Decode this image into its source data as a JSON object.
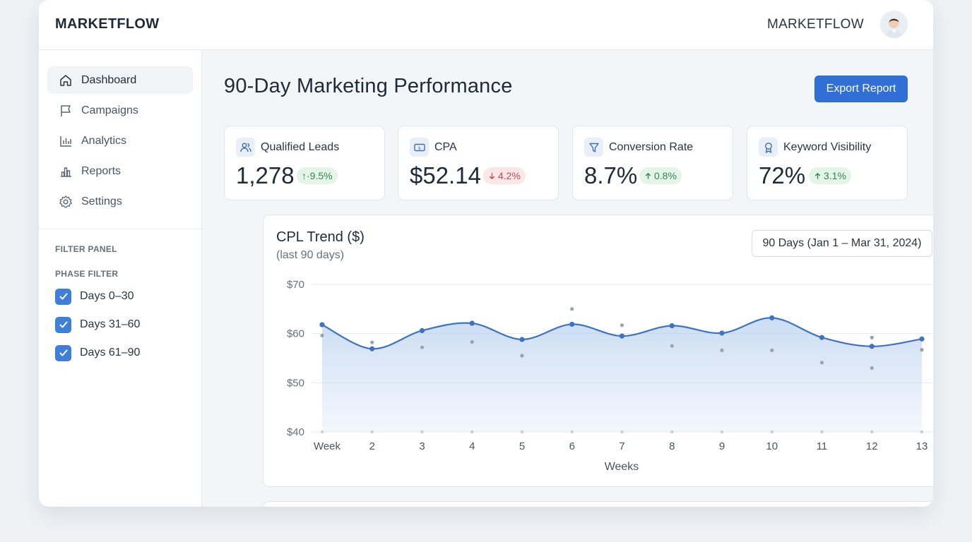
{
  "header": {
    "brand": "MARKETFLOW",
    "brand_right": "MARKETFLOW"
  },
  "sidebar": {
    "items": [
      {
        "label": "Dashboard",
        "icon": "home-icon",
        "active": true
      },
      {
        "label": "Campaigns",
        "icon": "flag-icon"
      },
      {
        "label": "Analytics",
        "icon": "bar-chart-icon"
      },
      {
        "label": "Reports",
        "icon": "report-chart-icon"
      },
      {
        "label": "Settings",
        "icon": "gear-icon"
      }
    ],
    "filter_panel_heading": "FILTER PANEL",
    "phase_filter_heading": "PHASE FILTER",
    "phases": [
      {
        "label": "Days 0–30",
        "checked": true
      },
      {
        "label": "Days 31–60",
        "checked": true
      },
      {
        "label": "Days 61–90",
        "checked": true
      }
    ]
  },
  "main": {
    "title": "90-Day Marketing Performance",
    "export_label": "Export Report",
    "kpis": [
      {
        "label": "Qualified Leads",
        "value": "1,278",
        "change": "↑·9.5%",
        "direction": "up",
        "icon": "users-icon"
      },
      {
        "label": "CPA",
        "value": "$52.14",
        "change": "4.2%",
        "direction": "down",
        "icon": "money-icon"
      },
      {
        "label": "Conversion Rate",
        "value": "8.7%",
        "change": "0.8%",
        "direction": "up",
        "icon": "filter-funnel-icon"
      },
      {
        "label": "Keyword Visibility",
        "value": "72%",
        "change": "3.1%",
        "direction": "up",
        "icon": "award-icon"
      }
    ],
    "chart_card": {
      "title": "CPL Trend ($)",
      "subtitle": "(last 90 days)",
      "range_label": "90 Days (Jan 1 – Mar 31, 2024)"
    }
  },
  "colors": {
    "accent": "#2f6fd6",
    "line": "#3f73bf",
    "up": "#2f8a4a",
    "down": "#cc4b4f"
  },
  "chart_data": {
    "type": "line",
    "title": "CPL Trend ($)",
    "subtitle": "(last 90 days)",
    "xlabel": "Weeks",
    "ylabel": "",
    "categories": [
      "Week",
      "2",
      "3",
      "4",
      "5",
      "6",
      "7",
      "8",
      "9",
      "10",
      "11",
      "12",
      "13"
    ],
    "series": [
      {
        "values": [
          61.8,
          56.9,
          60.6,
          62.1,
          58.8,
          61.9,
          59.5,
          61.6,
          60.1,
          63.2,
          59.2,
          57.4,
          58.9
        ]
      }
    ],
    "scatter": [
      59.6,
      58.2,
      57.2,
      58.3,
      55.5,
      65.0,
      61.7,
      57.5,
      56.6,
      56.6,
      54.1,
      59.2,
      56.7
    ],
    "scatter_lower": [
      53.0
    ],
    "yticks": [
      "$70",
      "$60",
      "$50",
      "$40"
    ],
    "ylim": [
      40,
      70
    ],
    "grid": true,
    "fill": "area"
  }
}
